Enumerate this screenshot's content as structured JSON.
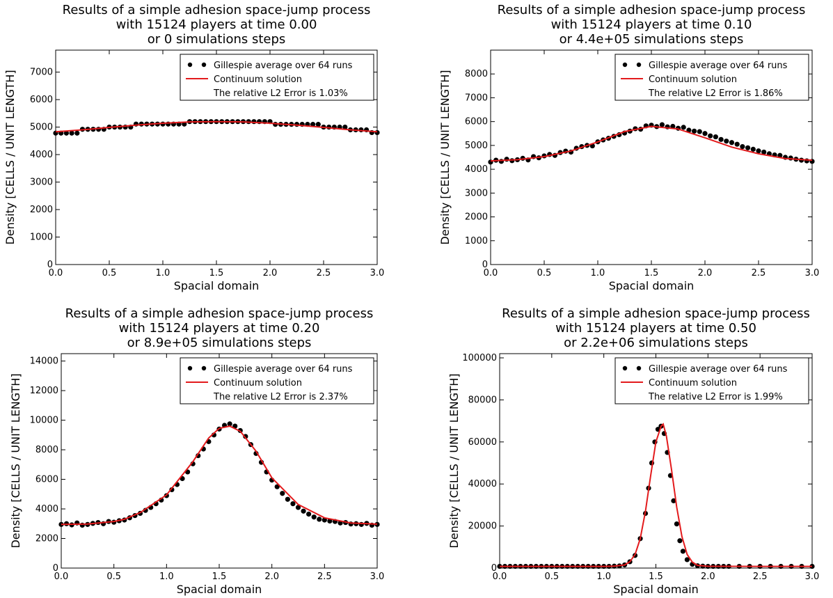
{
  "chart_data": [
    {
      "type": "scatter",
      "title": [
        "Results of a simple adhesion space-jump process",
        "with 15124 players at time 0.00",
        "or  0 simulations steps"
      ],
      "xlabel": "Spacial domain",
      "ylabel": "Density [CELLS / UNIT LENGTH]",
      "xlim": [
        0,
        3
      ],
      "ylim": [
        0,
        7800
      ],
      "xticks": [
        "0.0",
        "0.5",
        "1.0",
        "1.5",
        "2.0",
        "2.5",
        "3.0"
      ],
      "yticks": [
        "0",
        "1000",
        "2000",
        "3000",
        "4000",
        "5000",
        "6000",
        "7000"
      ],
      "legend": {
        "position": "top-right",
        "entries": [
          "Gillespie average over 64 runs",
          "Continuum solution",
          "The relative L2 Error is 1.03%"
        ]
      },
      "series": [
        {
          "name": "Gillespie average over 64 runs",
          "kind": "points",
          "color": "#000000",
          "x": [
            0.0,
            0.05,
            0.1,
            0.15,
            0.2,
            0.25,
            0.3,
            0.35,
            0.4,
            0.45,
            0.5,
            0.55,
            0.6,
            0.65,
            0.7,
            0.75,
            0.8,
            0.85,
            0.9,
            0.95,
            1.0,
            1.05,
            1.1,
            1.15,
            1.2,
            1.25,
            1.3,
            1.35,
            1.4,
            1.45,
            1.5,
            1.55,
            1.6,
            1.65,
            1.7,
            1.75,
            1.8,
            1.85,
            1.9,
            1.95,
            2.0,
            2.05,
            2.1,
            2.15,
            2.2,
            2.25,
            2.3,
            2.35,
            2.4,
            2.45,
            2.5,
            2.55,
            2.6,
            2.65,
            2.7,
            2.75,
            2.8,
            2.85,
            2.9,
            2.95,
            3.0
          ],
          "y": [
            4780,
            4780,
            4780,
            4780,
            4780,
            4920,
            4920,
            4920,
            4920,
            4920,
            5000,
            5000,
            5000,
            5000,
            5000,
            5110,
            5110,
            5110,
            5110,
            5110,
            5110,
            5110,
            5110,
            5110,
            5110,
            5200,
            5200,
            5200,
            5200,
            5200,
            5200,
            5200,
            5200,
            5200,
            5200,
            5200,
            5200,
            5200,
            5200,
            5200,
            5200,
            5100,
            5100,
            5100,
            5100,
            5100,
            5100,
            5100,
            5100,
            5100,
            5000,
            5000,
            5000,
            5000,
            5000,
            4900,
            4900,
            4900,
            4900,
            4800,
            4800
          ]
        },
        {
          "name": "Continuum solution",
          "kind": "line",
          "color": "#e31a1c",
          "x": [
            0.0,
            0.25,
            0.5,
            0.75,
            1.0,
            1.25,
            1.5,
            1.75,
            2.0,
            2.25,
            2.5,
            2.75,
            3.0
          ],
          "y": [
            4830,
            4900,
            4990,
            5070,
            5140,
            5190,
            5200,
            5190,
            5140,
            5070,
            4990,
            4900,
            4830
          ]
        }
      ]
    },
    {
      "type": "scatter",
      "title": [
        "Results of a simple adhesion space-jump process",
        "with 15124 players at time 0.10",
        "or 4.4e+05 simulations steps"
      ],
      "xlabel": "Spacial domain",
      "ylabel": "Density [CELLS / UNIT LENGTH]",
      "xlim": [
        0,
        3
      ],
      "ylim": [
        0,
        9000
      ],
      "xticks": [
        "0.0",
        "0.5",
        "1.0",
        "1.5",
        "2.0",
        "2.5",
        "3.0"
      ],
      "yticks": [
        "0",
        "1000",
        "2000",
        "3000",
        "4000",
        "5000",
        "6000",
        "7000",
        "8000"
      ],
      "legend": {
        "position": "top-right",
        "entries": [
          "Gillespie average over 64 runs",
          "Continuum solution",
          "The relative L2 Error is 1.86%"
        ]
      },
      "series": [
        {
          "name": "Gillespie average over 64 runs",
          "kind": "points",
          "color": "#000000",
          "x": [
            0.0,
            0.05,
            0.1,
            0.15,
            0.2,
            0.25,
            0.3,
            0.35,
            0.4,
            0.45,
            0.5,
            0.55,
            0.6,
            0.65,
            0.7,
            0.75,
            0.8,
            0.85,
            0.9,
            0.95,
            1.0,
            1.05,
            1.1,
            1.15,
            1.2,
            1.25,
            1.3,
            1.35,
            1.4,
            1.45,
            1.5,
            1.55,
            1.6,
            1.65,
            1.7,
            1.75,
            1.8,
            1.85,
            1.9,
            1.95,
            2.0,
            2.05,
            2.1,
            2.15,
            2.2,
            2.25,
            2.3,
            2.35,
            2.4,
            2.45,
            2.5,
            2.55,
            2.6,
            2.65,
            2.7,
            2.75,
            2.8,
            2.85,
            2.9,
            2.95,
            3.0
          ],
          "y": [
            4300,
            4380,
            4330,
            4420,
            4360,
            4400,
            4460,
            4390,
            4530,
            4480,
            4560,
            4620,
            4580,
            4700,
            4760,
            4720,
            4880,
            4950,
            5000,
            4980,
            5150,
            5230,
            5300,
            5380,
            5450,
            5520,
            5600,
            5700,
            5680,
            5820,
            5850,
            5790,
            5870,
            5780,
            5800,
            5720,
            5760,
            5640,
            5600,
            5580,
            5500,
            5400,
            5360,
            5250,
            5180,
            5120,
            5050,
            4950,
            4900,
            4840,
            4770,
            4720,
            4650,
            4600,
            4580,
            4500,
            4470,
            4420,
            4380,
            4350,
            4330
          ]
        },
        {
          "name": "Continuum solution",
          "kind": "line",
          "color": "#e31a1c",
          "x": [
            0.0,
            0.25,
            0.5,
            0.75,
            1.0,
            1.25,
            1.5,
            1.75,
            2.0,
            2.25,
            2.5,
            2.75,
            3.0
          ],
          "y": [
            4350,
            4400,
            4530,
            4770,
            5150,
            5580,
            5800,
            5690,
            5320,
            4930,
            4650,
            4450,
            4380
          ]
        }
      ]
    },
    {
      "type": "scatter",
      "title": [
        "Results of a simple adhesion space-jump process",
        "with 15124 players at time 0.20",
        "or 8.9e+05 simulations steps"
      ],
      "xlabel": "Spacial domain",
      "ylabel": "Density [CELLS / UNIT LENGTH]",
      "xlim": [
        0,
        3
      ],
      "ylim": [
        0,
        14500
      ],
      "xticks": [
        "0.0",
        "0.5",
        "1.0",
        "1.5",
        "2.0",
        "2.5",
        "3.0"
      ],
      "yticks": [
        "0",
        "2000",
        "4000",
        "6000",
        "8000",
        "10000",
        "12000",
        "14000"
      ],
      "legend": {
        "position": "top-right",
        "entries": [
          "Gillespie average over 64 runs",
          "Continuum solution",
          "The relative L2 Error is 2.37%"
        ]
      },
      "series": [
        {
          "name": "Gillespie average over 64 runs",
          "kind": "points",
          "color": "#000000",
          "x": [
            0.0,
            0.05,
            0.1,
            0.15,
            0.2,
            0.25,
            0.3,
            0.35,
            0.4,
            0.45,
            0.5,
            0.55,
            0.6,
            0.65,
            0.7,
            0.75,
            0.8,
            0.85,
            0.9,
            0.95,
            1.0,
            1.05,
            1.1,
            1.15,
            1.2,
            1.25,
            1.3,
            1.35,
            1.4,
            1.45,
            1.5,
            1.55,
            1.6,
            1.65,
            1.7,
            1.75,
            1.8,
            1.85,
            1.9,
            1.95,
            2.0,
            2.05,
            2.1,
            2.15,
            2.2,
            2.25,
            2.3,
            2.35,
            2.4,
            2.45,
            2.5,
            2.55,
            2.6,
            2.65,
            2.7,
            2.75,
            2.8,
            2.85,
            2.9,
            2.95,
            3.0
          ],
          "y": [
            2950,
            3000,
            2920,
            3050,
            2900,
            2950,
            3020,
            3080,
            3000,
            3150,
            3100,
            3200,
            3250,
            3400,
            3550,
            3700,
            3900,
            4100,
            4350,
            4600,
            4900,
            5300,
            5650,
            6050,
            6500,
            7050,
            7600,
            8050,
            8550,
            9000,
            9400,
            9650,
            9750,
            9600,
            9300,
            8900,
            8350,
            7750,
            7150,
            6500,
            5950,
            5500,
            5050,
            4650,
            4350,
            4100,
            3850,
            3650,
            3450,
            3300,
            3250,
            3180,
            3150,
            3050,
            3080,
            2980,
            3000,
            2950,
            3020,
            2900,
            2950
          ]
        },
        {
          "name": "Continuum solution",
          "kind": "line",
          "color": "#e31a1c",
          "x": [
            0.0,
            0.25,
            0.5,
            0.6,
            0.75,
            1.0,
            1.25,
            1.4,
            1.5,
            1.6,
            1.7,
            1.85,
            2.0,
            2.25,
            2.5,
            2.75,
            3.0
          ],
          "y": [
            2950,
            2980,
            3150,
            3300,
            3750,
            4950,
            7200,
            8800,
            9450,
            9600,
            9250,
            7900,
            6100,
            4300,
            3400,
            3050,
            2970
          ]
        }
      ]
    },
    {
      "type": "scatter",
      "title": [
        "Results of a simple adhesion space-jump process",
        "with 15124 players at time 0.50",
        "or 2.2e+06 simulations steps"
      ],
      "xlabel": "Spacial domain",
      "ylabel": "Density [CELLS / UNIT LENGTH]",
      "xlim": [
        0,
        3
      ],
      "ylim": [
        0,
        102000
      ],
      "xticks": [
        "0.0",
        "0.5",
        "1.0",
        "1.5",
        "2.0",
        "2.5",
        "3.0"
      ],
      "yticks": [
        "0",
        "20000",
        "40000",
        "60000",
        "80000",
        "100000"
      ],
      "legend": {
        "position": "top-right",
        "entries": [
          "Gillespie average over 64 runs",
          "Continuum solution",
          "The relative L2 Error is 1.99%"
        ]
      },
      "series": [
        {
          "name": "Gillespie average over 64 runs",
          "kind": "points",
          "color": "#000000",
          "x": [
            0.0,
            0.05,
            0.1,
            0.15,
            0.2,
            0.25,
            0.3,
            0.35,
            0.4,
            0.45,
            0.5,
            0.55,
            0.6,
            0.65,
            0.7,
            0.75,
            0.8,
            0.85,
            0.9,
            0.95,
            1.0,
            1.05,
            1.1,
            1.15,
            1.2,
            1.25,
            1.3,
            1.35,
            1.4,
            1.43,
            1.46,
            1.49,
            1.52,
            1.55,
            1.58,
            1.61,
            1.64,
            1.67,
            1.7,
            1.73,
            1.76,
            1.8,
            1.85,
            1.9,
            1.95,
            2.0,
            2.05,
            2.1,
            2.15,
            2.2,
            2.3,
            2.4,
            2.5,
            2.6,
            2.7,
            2.8,
            2.9,
            3.0
          ],
          "y": [
            800,
            800,
            800,
            800,
            800,
            800,
            800,
            800,
            800,
            800,
            800,
            800,
            800,
            800,
            800,
            800,
            800,
            800,
            800,
            800,
            800,
            800,
            900,
            1000,
            1500,
            3000,
            6000,
            14000,
            26000,
            38000,
            50000,
            60000,
            66000,
            67500,
            64000,
            55000,
            44000,
            32000,
            21000,
            13000,
            8000,
            4000,
            1800,
            1100,
            900,
            800,
            800,
            800,
            800,
            800,
            800,
            800,
            800,
            800,
            800,
            800,
            800,
            800
          ]
        },
        {
          "name": "Continuum solution",
          "kind": "line",
          "color": "#e31a1c",
          "x": [
            0.0,
            0.5,
            1.0,
            1.1,
            1.2,
            1.25,
            1.3,
            1.35,
            1.4,
            1.45,
            1.5,
            1.55,
            1.57,
            1.6,
            1.65,
            1.7,
            1.75,
            1.8,
            1.85,
            1.9,
            2.0,
            2.5,
            3.0
          ],
          "y": [
            800,
            800,
            800,
            900,
            1500,
            3000,
            6500,
            14000,
            27000,
            44000,
            60000,
            67500,
            68500,
            63000,
            47000,
            29000,
            15000,
            6500,
            2800,
            1300,
            850,
            800,
            800
          ]
        }
      ]
    }
  ]
}
